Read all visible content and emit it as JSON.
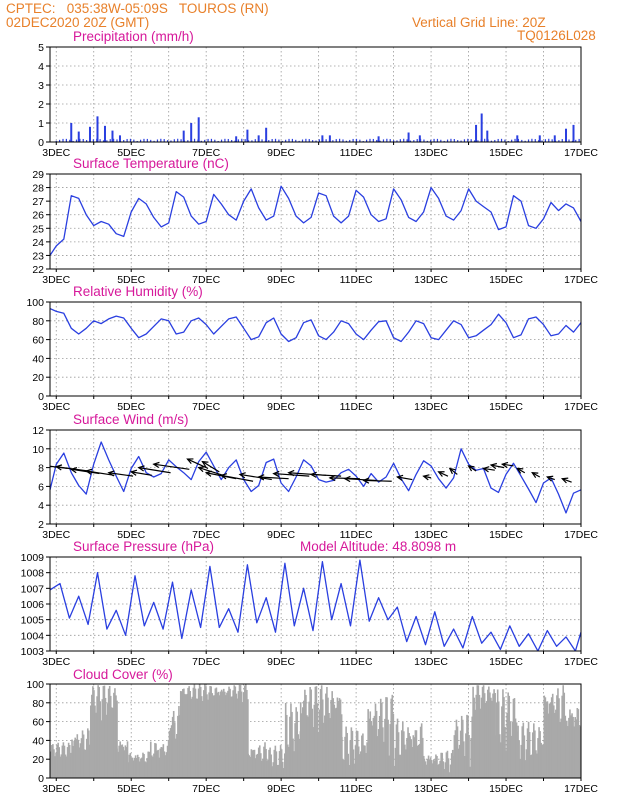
{
  "header": {
    "line1": "CPTEC:   035:38W-05:09S   TOUROS (RN)",
    "line2": "02DEC2020 20Z (GMT)",
    "right1": "Vertical Grid Line: 20Z",
    "right2": "TQ0126L028"
  },
  "colors": {
    "header": "#e8802a",
    "title": "#d6189a",
    "line": "#2a3fe0",
    "cloud": "#a9a9a9",
    "wind_arrow": "#000000"
  },
  "x_axis": {
    "tick_labels": [
      "3DEC",
      "5DEC",
      "7DEC",
      "9DEC",
      "11DEC",
      "13DEC",
      "15DEC",
      "17DEC"
    ],
    "range_days": [
      2.833,
      17.0
    ]
  },
  "chart_data": [
    {
      "id": "precip",
      "type": "bar",
      "title": "Precipitation (mm/h)",
      "ylim": [
        0,
        5
      ],
      "yticks": [
        "0",
        "1",
        "2",
        "3",
        "4",
        "5"
      ],
      "spikes": [
        [
          3.4,
          1.0
        ],
        [
          3.6,
          0.55
        ],
        [
          3.9,
          0.8
        ],
        [
          4.1,
          1.35
        ],
        [
          4.3,
          0.85
        ],
        [
          4.5,
          0.6
        ],
        [
          4.7,
          0.35
        ],
        [
          6.4,
          0.6
        ],
        [
          6.6,
          1.0
        ],
        [
          6.8,
          1.3
        ],
        [
          7.8,
          0.3
        ],
        [
          8.1,
          0.65
        ],
        [
          8.4,
          0.35
        ],
        [
          8.6,
          0.75
        ],
        [
          10.1,
          0.35
        ],
        [
          10.3,
          0.35
        ],
        [
          11.6,
          0.3
        ],
        [
          12.4,
          0.5
        ],
        [
          12.7,
          0.35
        ],
        [
          14.2,
          0.9
        ],
        [
          14.35,
          1.5
        ],
        [
          14.5,
          0.6
        ],
        [
          15.3,
          0.35
        ],
        [
          15.9,
          0.35
        ],
        [
          16.3,
          0.35
        ],
        [
          16.6,
          0.7
        ],
        [
          16.8,
          0.9
        ]
      ]
    },
    {
      "id": "temp",
      "type": "line",
      "title": "Surface Temperature (nC)",
      "ylim": [
        22,
        29
      ],
      "yticks": [
        "22",
        "23",
        "24",
        "25",
        "26",
        "27",
        "28",
        "29"
      ],
      "x": [
        2.833,
        3.0,
        3.2,
        3.4,
        3.6,
        3.8,
        4.0,
        4.2,
        4.4,
        4.6,
        4.8,
        5.0,
        5.2,
        5.4,
        5.6,
        5.8,
        6.0,
        6.2,
        6.4,
        6.6,
        6.8,
        7.0,
        7.2,
        7.4,
        7.6,
        7.8,
        8.0,
        8.2,
        8.4,
        8.6,
        8.8,
        9.0,
        9.2,
        9.4,
        9.6,
        9.8,
        10.0,
        10.2,
        10.4,
        10.6,
        10.8,
        11.0,
        11.2,
        11.4,
        11.6,
        11.8,
        12.0,
        12.2,
        12.4,
        12.6,
        12.8,
        13.0,
        13.2,
        13.4,
        13.6,
        13.8,
        14.0,
        14.2,
        14.4,
        14.6,
        14.8,
        15.0,
        15.2,
        15.4,
        15.6,
        15.8,
        16.0,
        16.2,
        16.4,
        16.6,
        16.8,
        17.0
      ],
      "y": [
        23.0,
        23.7,
        24.2,
        27.4,
        27.2,
        26.0,
        25.2,
        25.5,
        25.3,
        24.6,
        24.4,
        26.2,
        27.2,
        26.8,
        25.8,
        25.1,
        25.4,
        27.7,
        27.3,
        25.9,
        25.3,
        25.5,
        27.5,
        26.8,
        26.0,
        25.6,
        27.0,
        27.9,
        26.5,
        25.6,
        25.9,
        28.1,
        27.2,
        25.9,
        25.4,
        25.8,
        27.6,
        27.4,
        25.9,
        25.4,
        25.9,
        27.8,
        27.3,
        26.0,
        25.5,
        25.7,
        27.9,
        27.1,
        25.8,
        25.5,
        26.2,
        28.0,
        27.2,
        25.9,
        25.6,
        26.3,
        27.9,
        27.0,
        26.6,
        26.2,
        24.9,
        25.1,
        27.4,
        27.0,
        25.2,
        25.0,
        25.7,
        26.9,
        26.3,
        26.8,
        26.5,
        25.5
      ]
    },
    {
      "id": "rh",
      "type": "line",
      "title": "Relative Humidity (%)",
      "ylim": [
        0,
        100
      ],
      "yticks": [
        "0",
        "20",
        "40",
        "60",
        "80",
        "100"
      ],
      "x": [
        2.833,
        3.0,
        3.2,
        3.4,
        3.6,
        3.8,
        4.0,
        4.2,
        4.4,
        4.6,
        4.8,
        5.0,
        5.2,
        5.4,
        5.6,
        5.8,
        6.0,
        6.2,
        6.4,
        6.6,
        6.8,
        7.0,
        7.2,
        7.4,
        7.6,
        7.8,
        8.0,
        8.2,
        8.4,
        8.6,
        8.8,
        9.0,
        9.2,
        9.4,
        9.6,
        9.8,
        10.0,
        10.2,
        10.4,
        10.6,
        10.8,
        11.0,
        11.2,
        11.4,
        11.6,
        11.8,
        12.0,
        12.2,
        12.4,
        12.6,
        12.8,
        13.0,
        13.2,
        13.4,
        13.6,
        13.8,
        14.0,
        14.2,
        14.4,
        14.6,
        14.8,
        15.0,
        15.2,
        15.4,
        15.6,
        15.8,
        16.0,
        16.2,
        16.4,
        16.6,
        16.8,
        17.0
      ],
      "y": [
        93,
        90,
        88,
        72,
        66,
        72,
        80,
        77,
        82,
        85,
        83,
        72,
        62,
        66,
        74,
        82,
        80,
        66,
        68,
        80,
        83,
        76,
        66,
        74,
        82,
        84,
        72,
        60,
        63,
        78,
        83,
        66,
        58,
        62,
        78,
        81,
        64,
        60,
        68,
        80,
        77,
        66,
        60,
        70,
        79,
        80,
        62,
        58,
        68,
        80,
        77,
        62,
        60,
        70,
        80,
        76,
        62,
        64,
        70,
        76,
        87,
        78,
        62,
        65,
        82,
        84,
        76,
        64,
        66,
        75,
        68,
        78
      ]
    },
    {
      "id": "wind",
      "type": "line",
      "title": "Surface Wind (m/s)",
      "ylim": [
        2,
        13
      ],
      "yticks": [
        "2",
        "4",
        "6",
        "8",
        "10",
        "12"
      ],
      "x": [
        2.833,
        3.0,
        3.2,
        3.4,
        3.6,
        3.8,
        4.0,
        4.2,
        4.4,
        4.6,
        4.8,
        5.0,
        5.2,
        5.4,
        5.6,
        5.8,
        6.0,
        6.2,
        6.4,
        6.6,
        6.8,
        7.0,
        7.2,
        7.4,
        7.6,
        7.8,
        8.0,
        8.2,
        8.4,
        8.6,
        8.8,
        9.0,
        9.2,
        9.4,
        9.6,
        9.8,
        10.0,
        10.2,
        10.4,
        10.6,
        10.8,
        11.0,
        11.2,
        11.4,
        11.6,
        11.8,
        12.0,
        12.2,
        12.4,
        12.6,
        12.8,
        13.0,
        13.2,
        13.4,
        13.6,
        13.8,
        14.0,
        14.2,
        14.4,
        14.6,
        14.8,
        15.0,
        15.2,
        15.4,
        15.6,
        15.8,
        16.0,
        16.2,
        16.4,
        16.6,
        16.8,
        17.0
      ],
      "y": [
        6.0,
        9.0,
        10.3,
        8.0,
        6.5,
        5.5,
        9.0,
        11.6,
        9.5,
        7.6,
        5.8,
        8.5,
        9.9,
        8.0,
        7.5,
        7.9,
        9.5,
        8.7,
        8.0,
        7.2,
        9.3,
        10.4,
        8.8,
        7.2,
        8.6,
        9.5,
        7.2,
        5.8,
        6.5,
        9.2,
        9.6,
        6.8,
        5.8,
        7.5,
        9.5,
        8.8,
        7.2,
        6.9,
        7.1,
        8.0,
        8.4,
        7.6,
        6.4,
        7.9,
        6.9,
        7.5,
        9.1,
        7.3,
        5.9,
        7.8,
        9.4,
        8.8,
        7.3,
        6.2,
        7.4,
        10.8,
        9.0,
        8.3,
        8.5,
        6.2,
        5.7,
        7.8,
        9.1,
        7.6,
        6.1,
        4.5,
        6.8,
        7.4,
        5.5,
        3.3,
        5.6,
        6.0
      ],
      "arrows": [
        [
          3.3,
          8.5,
          2.2,
          9.1
        ],
        [
          3.85,
          8.2,
          3.0,
          8.7
        ],
        [
          4.15,
          7.9,
          3.4,
          8.4
        ],
        [
          4.55,
          7.7,
          3.8,
          8.2
        ],
        [
          5.05,
          7.6,
          4.4,
          8.0
        ],
        [
          5.55,
          7.7,
          5.0,
          8.1
        ],
        [
          6.05,
          8.0,
          5.2,
          8.6
        ],
        [
          6.55,
          8.4,
          5.6,
          9.0
        ],
        [
          7.05,
          8.5,
          6.5,
          9.6
        ],
        [
          7.35,
          8.1,
          6.9,
          9.3
        ],
        [
          7.45,
          7.7,
          6.8,
          8.6
        ],
        [
          7.8,
          7.3,
          7.0,
          8.0
        ],
        [
          8.25,
          7.0,
          7.4,
          7.7
        ],
        [
          8.75,
          7.2,
          7.9,
          7.8
        ],
        [
          9.2,
          7.3,
          8.4,
          7.5
        ],
        [
          9.75,
          7.6,
          8.8,
          7.9
        ],
        [
          10.2,
          7.7,
          9.2,
          8.0
        ],
        [
          10.6,
          7.6,
          9.8,
          7.8
        ],
        [
          11.1,
          7.3,
          10.3,
          7.4
        ],
        [
          11.55,
          7.1,
          10.7,
          7.3
        ],
        [
          11.95,
          7.0,
          11.2,
          7.1
        ],
        [
          12.5,
          7.2,
          12.1,
          7.5
        ],
        [
          13.0,
          7.4,
          12.8,
          7.6
        ],
        [
          13.45,
          7.6,
          13.2,
          8.1
        ],
        [
          13.7,
          7.8,
          13.5,
          8.5
        ],
        [
          14.2,
          8.2,
          14.0,
          8.8
        ],
        [
          14.7,
          8.3,
          14.4,
          8.5
        ],
        [
          14.95,
          8.6,
          14.6,
          8.9
        ],
        [
          15.2,
          8.8,
          14.9,
          9.0
        ],
        [
          15.5,
          8.0,
          15.3,
          8.5
        ],
        [
          15.9,
          7.5,
          15.7,
          8.0
        ],
        [
          16.3,
          7.2,
          16.1,
          7.5
        ],
        [
          16.75,
          6.9,
          16.5,
          7.3
        ]
      ]
    },
    {
      "id": "pressure",
      "type": "line",
      "title": "Surface Pressure (hPa)",
      "annotation": "Model Altitude: 48.8098 m",
      "ylim": [
        1003,
        1009
      ],
      "yticks": [
        "1003",
        "1004",
        "1005",
        "1006",
        "1007",
        "1008",
        "1009"
      ],
      "x": [
        2.833,
        3.1,
        3.35,
        3.6,
        3.85,
        4.1,
        4.35,
        4.6,
        4.85,
        5.1,
        5.35,
        5.6,
        5.85,
        6.1,
        6.35,
        6.6,
        6.85,
        7.1,
        7.35,
        7.6,
        7.85,
        8.1,
        8.35,
        8.6,
        8.85,
        9.1,
        9.35,
        9.6,
        9.85,
        10.1,
        10.35,
        10.6,
        10.85,
        11.1,
        11.35,
        11.6,
        11.85,
        12.1,
        12.35,
        12.6,
        12.85,
        13.1,
        13.35,
        13.6,
        13.85,
        14.1,
        14.35,
        14.6,
        14.85,
        15.1,
        15.35,
        15.6,
        15.85,
        16.1,
        16.35,
        16.6,
        16.85,
        17.0
      ],
      "y": [
        1006.9,
        1007.3,
        1005.1,
        1006.5,
        1004.7,
        1008.0,
        1004.4,
        1005.6,
        1004.0,
        1007.8,
        1004.6,
        1006.1,
        1004.4,
        1007.4,
        1003.8,
        1006.9,
        1004.5,
        1008.4,
        1004.5,
        1005.7,
        1004.2,
        1008.5,
        1004.8,
        1006.4,
        1004.2,
        1008.6,
        1004.6,
        1007.0,
        1004.3,
        1008.7,
        1005.0,
        1007.3,
        1004.6,
        1008.8,
        1004.9,
        1006.4,
        1005.0,
        1005.8,
        1003.6,
        1005.2,
        1003.4,
        1005.5,
        1003.3,
        1004.4,
        1003.2,
        1005.2,
        1003.5,
        1004.2,
        1003.1,
        1004.6,
        1003.3,
        1004.1,
        1003.0,
        1004.3,
        1003.3,
        1003.9,
        1003.0,
        1004.2
      ]
    },
    {
      "id": "cloud",
      "type": "bar",
      "title": "Cloud Cover (%)",
      "ylim": [
        0,
        100
      ],
      "yticks": [
        "0",
        "20",
        "40",
        "60",
        "80",
        "100"
      ],
      "segments": [
        [
          2.833,
          3.4,
          18,
          38
        ],
        [
          3.4,
          3.9,
          15,
          55
        ],
        [
          3.9,
          4.6,
          60,
          100
        ],
        [
          4.6,
          4.9,
          15,
          45
        ],
        [
          4.9,
          5.5,
          8,
          30
        ],
        [
          5.5,
          6.0,
          5,
          45
        ],
        [
          6.0,
          6.3,
          20,
          80
        ],
        [
          6.3,
          7.7,
          78,
          100
        ],
        [
          7.7,
          8.1,
          80,
          100
        ],
        [
          8.1,
          8.6,
          5,
          40
        ],
        [
          8.6,
          9.1,
          5,
          35
        ],
        [
          9.1,
          9.5,
          15,
          80
        ],
        [
          9.5,
          10.6,
          45,
          100
        ],
        [
          10.6,
          11.3,
          5,
          55
        ],
        [
          11.3,
          12.0,
          20,
          90
        ],
        [
          12.0,
          12.8,
          5,
          65
        ],
        [
          12.8,
          13.6,
          2,
          30
        ],
        [
          13.6,
          14.1,
          10,
          70
        ],
        [
          14.1,
          14.7,
          70,
          100
        ],
        [
          14.7,
          15.3,
          20,
          95
        ],
        [
          15.3,
          16.0,
          10,
          60
        ],
        [
          16.0,
          16.6,
          45,
          100
        ],
        [
          16.6,
          17.0,
          30,
          85
        ]
      ]
    }
  ]
}
